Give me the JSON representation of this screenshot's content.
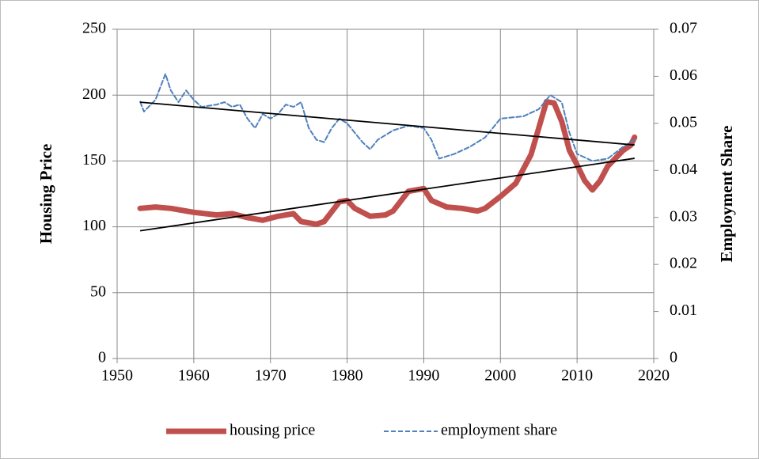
{
  "chart_data": {
    "type": "line",
    "xlabel": null,
    "ylabel": "Housing Price",
    "y2label": "Employment Share",
    "xlim": [
      1950,
      2020
    ],
    "xticks": [
      1950,
      1960,
      1970,
      1980,
      1990,
      2000,
      2010,
      2020
    ],
    "ylim": [
      0,
      250
    ],
    "yticks": [
      0,
      50,
      100,
      150,
      200,
      250
    ],
    "y2lim": [
      0,
      0.07
    ],
    "y2ticks": [
      0,
      0.01,
      0.02,
      0.03,
      0.04,
      0.05,
      0.06,
      0.07
    ],
    "grid": true,
    "legend": "bottom",
    "series": [
      {
        "name": "housing price",
        "color": "#c0504d",
        "style": "solid",
        "width": 7,
        "axis": "y",
        "x": [
          1953,
          1955,
          1957,
          1960,
          1963,
          1965,
          1967,
          1969,
          1971,
          1973,
          1974,
          1976,
          1977,
          1979,
          1980,
          1981,
          1983,
          1985,
          1986,
          1988,
          1990,
          1991,
          1993,
          1995,
          1997,
          1998,
          2000,
          2002,
          2004,
          2005,
          2006,
          2007,
          2008,
          2009,
          2010,
          2011,
          2012,
          2013,
          2014,
          2015,
          2016,
          2017,
          2017.5
        ],
        "values": [
          114,
          115,
          114,
          111,
          109,
          110,
          107,
          105,
          108,
          110,
          104,
          102,
          104,
          119,
          120,
          114,
          108,
          109,
          112,
          127,
          129,
          120,
          115,
          114,
          112,
          114,
          123,
          133,
          155,
          175,
          195,
          194,
          180,
          158,
          147,
          135,
          128,
          135,
          146,
          152,
          158,
          162,
          168
        ]
      },
      {
        "name": "employment share",
        "color": "#4f81bd",
        "style": "dashed",
        "width": 2,
        "axis": "y2",
        "x": [
          1953,
          1953.5,
          1955,
          1956.3,
          1957,
          1958,
          1959,
          1960,
          1961,
          1963,
          1964,
          1965,
          1966,
          1967,
          1968,
          1969,
          1970,
          1971,
          1972,
          1973,
          1974,
          1975,
          1976,
          1977,
          1978,
          1979,
          1980,
          1981,
          1982,
          1983,
          1984,
          1986,
          1988,
          1990,
          1991,
          1992,
          1994,
          1996,
          1998,
          2000,
          2003,
          2005,
          2006.5,
          2008,
          2009,
          2010,
          2012,
          2014,
          2016,
          2017.5
        ],
        "values": [
          0.0546,
          0.0525,
          0.055,
          0.0605,
          0.057,
          0.0545,
          0.057,
          0.055,
          0.0535,
          0.054,
          0.0545,
          0.0535,
          0.054,
          0.051,
          0.049,
          0.052,
          0.051,
          0.052,
          0.054,
          0.0535,
          0.0545,
          0.049,
          0.0465,
          0.046,
          0.049,
          0.051,
          0.05,
          0.048,
          0.046,
          0.0445,
          0.0465,
          0.0485,
          0.0495,
          0.049,
          0.0465,
          0.0425,
          0.0435,
          0.045,
          0.047,
          0.051,
          0.0515,
          0.053,
          0.056,
          0.0545,
          0.048,
          0.0435,
          0.042,
          0.0425,
          0.045,
          0.0465
        ]
      }
    ],
    "trendlines": [
      {
        "color": "#000000",
        "axis": "y",
        "x": [
          1953,
          2017.5
        ],
        "values": [
          97,
          152
        ]
      },
      {
        "color": "#000000",
        "axis": "y2",
        "x": [
          1953,
          2017.5
        ],
        "values": [
          0.0545,
          0.0454
        ]
      }
    ]
  }
}
